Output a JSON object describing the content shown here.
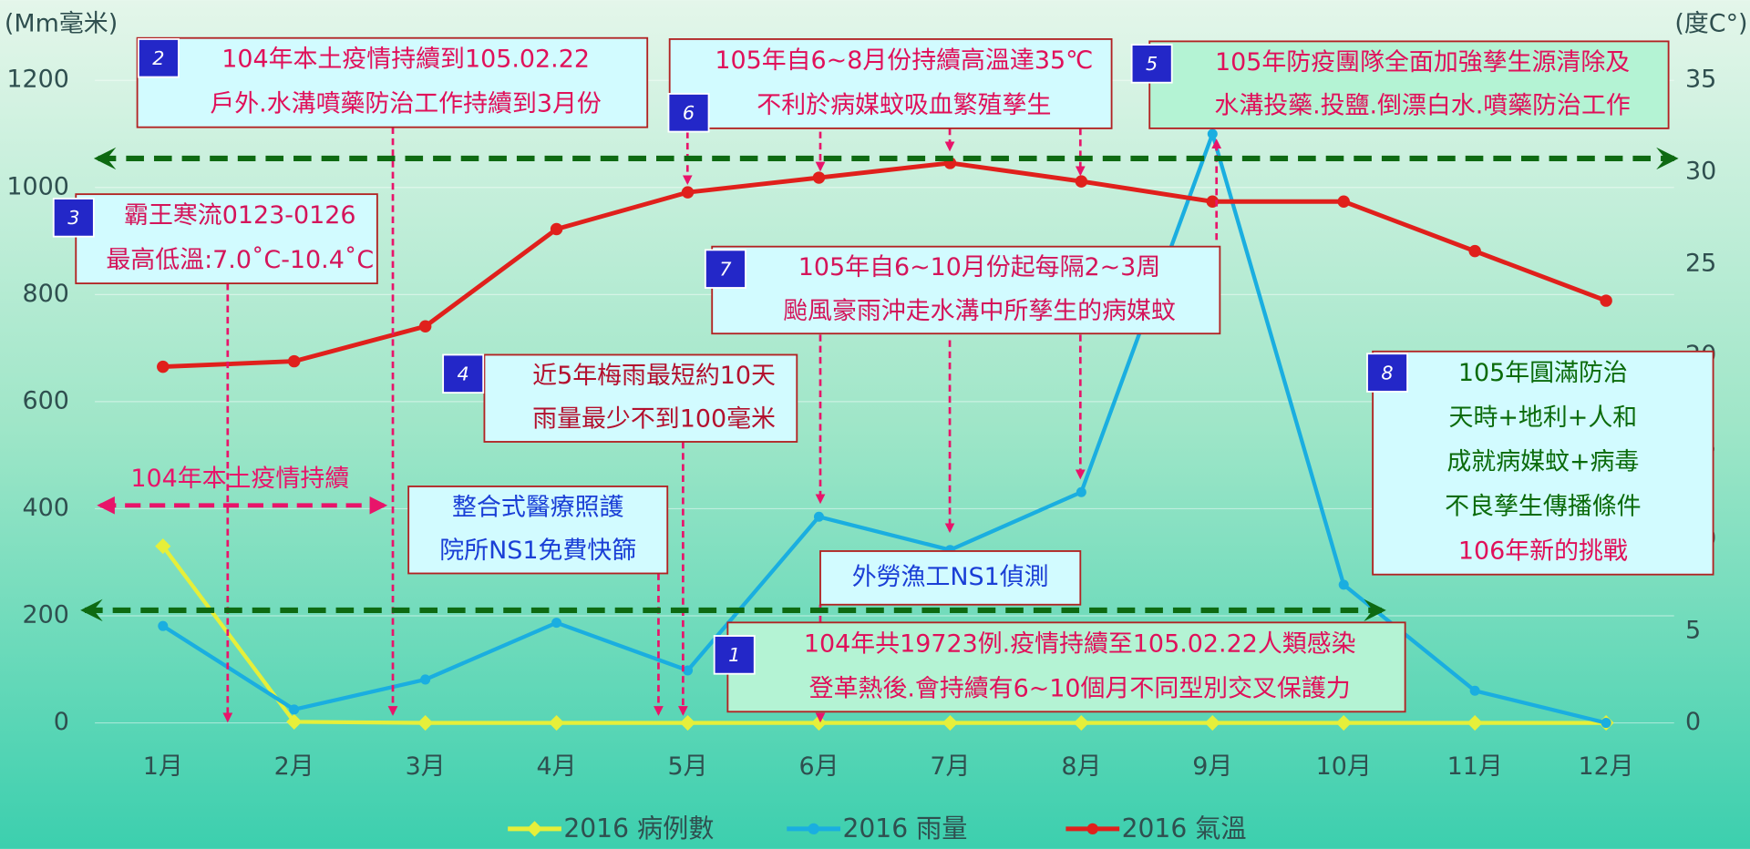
{
  "chart_data": {
    "type": "line",
    "y_label": "(Mm毫米)",
    "y2_label": "(度C°)",
    "categories": [
      "1月",
      "2月",
      "3月",
      "4月",
      "5月",
      "6月",
      "7月",
      "8月",
      "9月",
      "10月",
      "11月",
      "12月"
    ],
    "series": [
      {
        "name": "2016 病例數",
        "color": "#e6ef3a",
        "values": [
          330,
          2,
          0,
          0,
          0,
          0,
          0,
          0,
          0,
          0,
          0,
          0
        ]
      },
      {
        "name": "2016 雨量",
        "color": "#1aaee0",
        "values": [
          181,
          25,
          81,
          187,
          98,
          385,
          323,
          431,
          1100,
          258,
          60,
          0
        ]
      },
      {
        "name": "2016 氣溫",
        "color": "#e0201c",
        "axis": "y2",
        "values": [
          19.4,
          19.7,
          21.6,
          26.9,
          28.9,
          29.7,
          30.5,
          29.5,
          28.4,
          28.4,
          25.7,
          23.0
        ]
      }
    ],
    "ylim": [
      0,
      1200
    ],
    "yticks": [
      0,
      200,
      400,
      600,
      800,
      1000,
      1200
    ],
    "y2lim": [
      0,
      35
    ],
    "y2ticks": [
      0,
      5,
      10,
      15,
      20,
      25,
      30,
      35
    ],
    "grid": true,
    "legend": "bottom",
    "annotations": [
      {
        "badge": 2,
        "lines": [
          "104年本土疫情持續到105.02.22",
          "戶外.水溝噴藥防治工作持續到3月份"
        ]
      },
      {
        "badge": 6,
        "lines": [
          "105年自6~8月份持續高溫達35℃",
          "不利於病媒蚊吸血繁殖孳生"
        ]
      },
      {
        "badge": 5,
        "lines": [
          "105年防疫團隊全面加強孳生源清除及",
          "水溝投藥.投鹽.倒漂白水.噴藥防治工作"
        ]
      },
      {
        "badge": 3,
        "lines": [
          "霸王寒流0123-0126",
          "最高低溫:7.0˚C-10.4˚C"
        ]
      },
      {
        "badge": 7,
        "lines": [
          "105年自6~10月份起每隔2~3周",
          "颱風豪雨沖走水溝中所孳生的病媒蚊"
        ]
      },
      {
        "badge": 4,
        "lines": [
          "近5年梅雨最短約10天",
          "雨量最少不到100毫米"
        ]
      },
      {
        "badge": 8,
        "lines": [
          "105年圓滿防治",
          "天時+地利+人和",
          "成就病媒蚊+病毒",
          "不良孳生傳播條件",
          "106年新的挑戰"
        ]
      },
      {
        "badge": 1,
        "lines": [
          "104年共19723例.疫情持續至105.02.22人類感染",
          "登革熱後.會持續有6~10個月不同型別交叉保護力"
        ]
      },
      {
        "lines": [
          "整合式醫療照護",
          "院所NS1免費快篩"
        ]
      },
      {
        "lines": [
          "外勞漁工NS1偵測"
        ]
      }
    ],
    "period_label": "104年本土疫情持續"
  }
}
